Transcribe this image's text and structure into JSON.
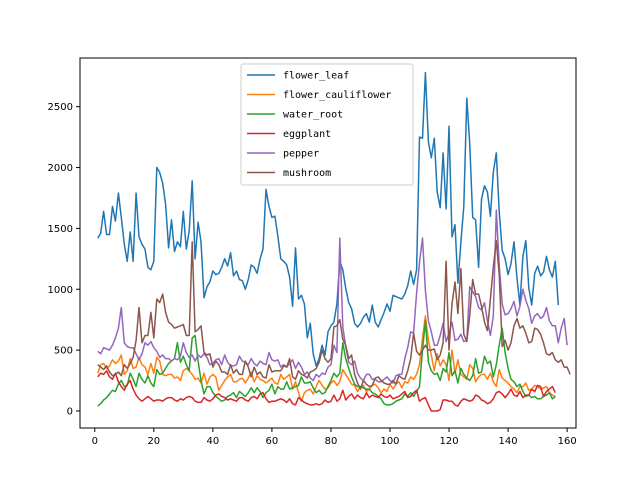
{
  "chart_data": {
    "type": "line",
    "title": "",
    "xlabel": "",
    "ylabel": "",
    "xlim": [
      -5,
      163
    ],
    "ylim": [
      -140,
      2900
    ],
    "xticks": [
      0,
      20,
      40,
      60,
      80,
      100,
      120,
      140,
      160
    ],
    "yticks": [
      0,
      500,
      1000,
      1500,
      2000,
      2500
    ],
    "grid": false,
    "legend_position": "top-center",
    "series": [
      {
        "name": "flower_leaf",
        "color": "#1f77b4",
        "values": [
          1420,
          1460,
          1640,
          1450,
          1450,
          1680,
          1560,
          1790,
          1590,
          1370,
          1230,
          1470,
          1230,
          1790,
          1430,
          1370,
          1330,
          1180,
          1160,
          1230,
          2000,
          1960,
          1870,
          1700,
          1340,
          1570,
          1310,
          1390,
          1350,
          1640,
          1330,
          1480,
          1890,
          1250,
          1550,
          1390,
          930,
          1020,
          1060,
          1150,
          1120,
          1130,
          1180,
          1250,
          1190,
          1300,
          1110,
          1150,
          1080,
          1070,
          1000,
          1080,
          1200,
          1180,
          1130,
          1250,
          1330,
          1820,
          1680,
          1590,
          1600,
          1440,
          1250,
          1230,
          1200,
          1100,
          860,
          1340,
          920,
          950,
          880,
          600,
          720,
          470,
          370,
          430,
          540,
          460,
          650,
          700,
          730,
          880,
          1230,
          1160,
          1010,
          890,
          840,
          720,
          690,
          720,
          770,
          800,
          730,
          870,
          730,
          690,
          750,
          810,
          880,
          820,
          950,
          940,
          930,
          920,
          960,
          1030,
          1150,
          1040,
          1160,
          2250,
          2240,
          2780,
          2210,
          2080,
          2240,
          1800,
          1670,
          2120,
          1660,
          2340,
          1430,
          1530,
          1050,
          1390,
          1680,
          2570,
          2200,
          1590,
          1570,
          1180,
          1740,
          1850,
          1800,
          1600,
          1960,
          2120,
          1640,
          1320,
          1250,
          1120,
          1210,
          1390,
          1090,
          870,
          1270,
          1400,
          1010,
          870,
          1130,
          1190,
          1110,
          1140,
          1270,
          1160,
          1100,
          1230,
          870
        ]
      },
      {
        "name": "flower_cauliflower",
        "color": "#ff7f0e",
        "values": [
          310,
          380,
          390,
          350,
          370,
          420,
          390,
          410,
          460,
          300,
          330,
          430,
          350,
          360,
          440,
          380,
          360,
          300,
          390,
          310,
          440,
          410,
          300,
          290,
          300,
          300,
          270,
          280,
          250,
          330,
          350,
          330,
          300,
          260,
          270,
          230,
          310,
          220,
          280,
          300,
          280,
          170,
          210,
          250,
          280,
          300,
          240,
          240,
          260,
          270,
          230,
          270,
          320,
          240,
          290,
          260,
          250,
          230,
          250,
          270,
          230,
          220,
          300,
          260,
          280,
          300,
          180,
          240,
          150,
          80,
          150,
          170,
          180,
          140,
          200,
          250,
          210,
          180,
          190,
          230,
          250,
          210,
          240,
          340,
          300,
          260,
          220,
          210,
          160,
          200,
          210,
          160,
          180,
          210,
          220,
          190,
          150,
          180,
          160,
          220,
          180,
          220,
          240,
          190,
          240,
          230,
          280,
          260,
          300,
          380,
          600,
          780,
          580,
          460,
          330,
          470,
          370,
          420,
          380,
          250,
          500,
          310,
          420,
          300,
          280,
          260,
          380,
          350,
          240,
          280,
          300,
          300,
          260,
          310,
          240,
          200,
          340,
          270,
          250,
          230,
          200,
          180,
          150,
          200,
          200,
          230,
          170,
          180,
          210,
          200,
          180,
          190,
          200,
          150,
          130,
          120
        ]
      },
      {
        "name": "water_root",
        "color": "#2ca02c",
        "values": [
          40,
          60,
          90,
          110,
          140,
          170,
          160,
          220,
          250,
          200,
          210,
          310,
          260,
          200,
          310,
          260,
          230,
          290,
          230,
          200,
          340,
          300,
          310,
          350,
          390,
          410,
          430,
          560,
          400,
          450,
          380,
          330,
          600,
          620,
          410,
          250,
          140,
          200,
          200,
          150,
          120,
          100,
          80,
          90,
          120,
          130,
          150,
          110,
          160,
          140,
          120,
          150,
          190,
          150,
          190,
          160,
          110,
          150,
          170,
          220,
          140,
          200,
          180,
          180,
          240,
          180,
          190,
          200,
          210,
          280,
          230,
          230,
          240,
          190,
          150,
          170,
          140,
          150,
          200,
          250,
          310,
          280,
          310,
          560,
          430,
          350,
          280,
          220,
          200,
          200,
          190,
          180,
          180,
          150,
          140,
          120,
          100,
          60,
          50,
          50,
          60,
          80,
          90,
          100,
          140,
          120,
          150,
          120,
          160,
          200,
          500,
          740,
          400,
          330,
          300,
          310,
          250,
          350,
          320,
          480,
          290,
          330,
          230,
          350,
          300,
          270,
          250,
          290,
          430,
          310,
          320,
          450,
          390,
          410,
          280,
          380,
          540,
          680,
          480,
          350,
          260,
          240,
          200,
          220,
          160,
          120,
          130,
          110,
          120,
          100,
          100,
          120,
          130,
          150,
          100,
          120
        ]
      },
      {
        "name": "eggplant",
        "color": "#d62728",
        "values": [
          280,
          310,
          300,
          330,
          280,
          260,
          310,
          240,
          200,
          170,
          220,
          250,
          180,
          130,
          100,
          80,
          100,
          120,
          100,
          80,
          90,
          90,
          80,
          100,
          110,
          110,
          90,
          80,
          100,
          90,
          110,
          120,
          110,
          80,
          70,
          70,
          110,
          90,
          80,
          100,
          130,
          140,
          120,
          110,
          90,
          100,
          90,
          80,
          110,
          110,
          90,
          80,
          110,
          120,
          100,
          140,
          150,
          100,
          70,
          80,
          80,
          90,
          100,
          90,
          70,
          100,
          60,
          50,
          110,
          90,
          70,
          60,
          50,
          50,
          60,
          50,
          60,
          90,
          70,
          80,
          130,
          80,
          100,
          170,
          90,
          120,
          140,
          100,
          130,
          110,
          100,
          150,
          110,
          130,
          120,
          110,
          140,
          120,
          110,
          130,
          100,
          110,
          120,
          140,
          160,
          110,
          120,
          150,
          170,
          80,
          100,
          110,
          50,
          0,
          0,
          0,
          10,
          90,
          90,
          80,
          80,
          50,
          40,
          80,
          100,
          90,
          80,
          90,
          130,
          120,
          90,
          80,
          60,
          70,
          100,
          150,
          160,
          140,
          110,
          140,
          180,
          130,
          120,
          160,
          110,
          130,
          130,
          180,
          160,
          210,
          200,
          120,
          160,
          180,
          200,
          150
        ]
      },
      {
        "name": "pepper",
        "color": "#9467bd",
        "values": [
          490,
          470,
          520,
          510,
          500,
          540,
          600,
          680,
          850,
          560,
          530,
          520,
          520,
          470,
          420,
          470,
          560,
          540,
          570,
          520,
          490,
          440,
          460,
          430,
          430,
          410,
          430,
          420,
          450,
          560,
          480,
          440,
          460,
          410,
          460,
          440,
          470,
          440,
          380,
          390,
          420,
          430,
          380,
          460,
          400,
          370,
          370,
          380,
          450,
          410,
          400,
          380,
          430,
          390,
          370,
          410,
          390,
          380,
          480,
          420,
          410,
          420,
          360,
          380,
          360,
          390,
          420,
          350,
          400,
          360,
          300,
          320,
          270,
          250,
          300,
          280,
          310,
          300,
          360,
          380,
          540,
          480,
          1420,
          690,
          530,
          400,
          380,
          410,
          310,
          270,
          250,
          300,
          300,
          260,
          260,
          240,
          240,
          260,
          280,
          250,
          230,
          290,
          300,
          300,
          430,
          520,
          650,
          640,
          970,
          1220,
          1420,
          990,
          740,
          650,
          540,
          540,
          620,
          720,
          570,
          640,
          730,
          580,
          590,
          630,
          570,
          580,
          1020,
          980,
          940,
          850,
          830,
          890,
          740,
          620,
          780,
          1650,
          1200,
          880,
          790,
          800,
          840,
          900,
          780,
          860,
          1000,
          910,
          840,
          720,
          780,
          800,
          760,
          780,
          850,
          740,
          700,
          700,
          560,
          680,
          760,
          540
        ]
      },
      {
        "name": "mushroom",
        "color": "#8c564b",
        "values": [
          380,
          360,
          340,
          370,
          320,
          290,
          300,
          320,
          290,
          380,
          350,
          390,
          440,
          580,
          850,
          560,
          620,
          620,
          810,
          600,
          920,
          890,
          960,
          810,
          730,
          710,
          680,
          690,
          700,
          710,
          620,
          620,
          1390,
          650,
          670,
          700,
          480,
          460,
          470,
          360,
          410,
          380,
          320,
          320,
          300,
          380,
          310,
          340,
          300,
          300,
          410,
          360,
          280,
          360,
          300,
          320,
          280,
          270,
          380,
          320,
          330,
          330,
          330,
          370,
          360,
          430,
          280,
          260,
          330,
          300,
          290,
          270,
          320,
          330,
          350,
          400,
          500,
          430,
          400,
          430,
          690,
          700,
          750,
          590,
          540,
          430,
          460,
          300,
          230,
          180,
          250,
          220,
          200,
          210,
          270,
          280,
          250,
          230,
          220,
          220,
          250,
          220,
          290,
          270,
          260,
          330,
          430,
          640,
          490,
          460,
          500,
          540,
          500,
          500,
          510,
          420,
          460,
          560,
          1230,
          500,
          880,
          1060,
          800,
          1170,
          630,
          570,
          780,
          1080,
          960,
          960,
          860,
          730,
          660,
          920,
          1180,
          1400,
          1120,
          530,
          580,
          500,
          560,
          700,
          760,
          680,
          700,
          640,
          560,
          570,
          680,
          670,
          630,
          560,
          470,
          460,
          480,
          420,
          400,
          420,
          360,
          360,
          300
        ]
      }
    ]
  }
}
